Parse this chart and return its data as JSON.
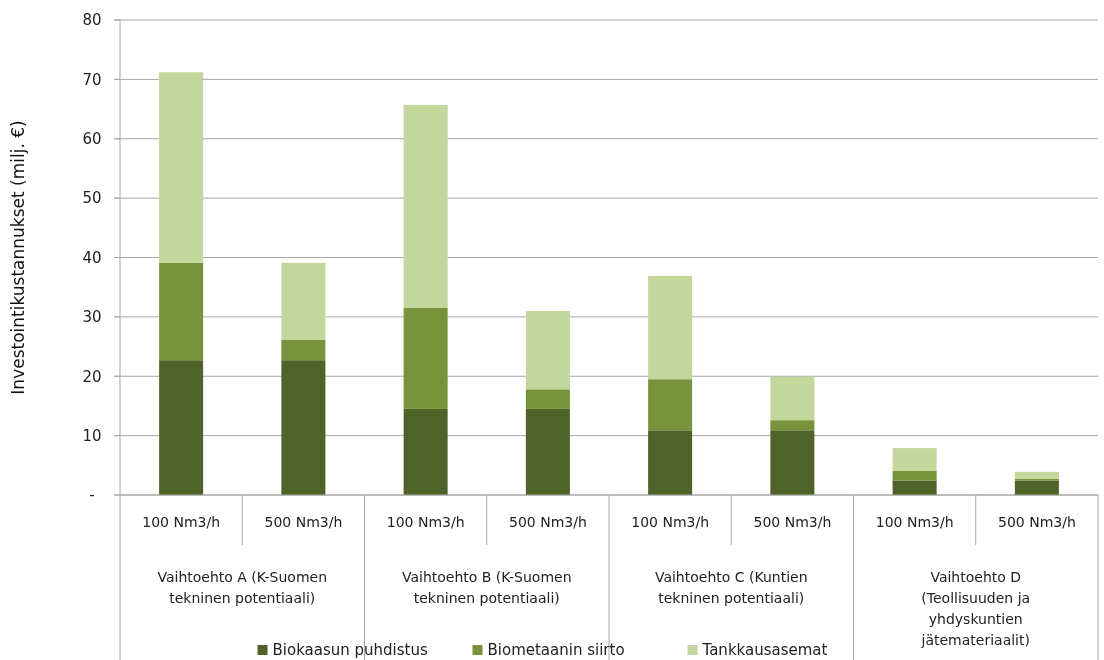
{
  "chart_data": {
    "type": "bar",
    "stacked": true,
    "ylabel": "Investointikustannukset (milj. €)",
    "categories": [
      "100 Nm3/h",
      "500 Nm3/h",
      "100 Nm3/h",
      "500 Nm3/h",
      "100 Nm3/h",
      "500 Nm3/h",
      "100 Nm3/h",
      "500 Nm3/h"
    ],
    "series": [
      {
        "name": "Biokaasun puhdistus",
        "color": "#4f6228",
        "values": [
          22.7,
          22.7,
          14.5,
          14.5,
          10.9,
          10.9,
          2.4,
          2.4
        ]
      },
      {
        "name": "Biometaanin siirto",
        "color": "#77933c",
        "values": [
          16.4,
          3.4,
          17.0,
          3.3,
          8.6,
          1.7,
          1.7,
          0.3
        ]
      },
      {
        "name": "Tankkausasemat",
        "color": "#c3d69b",
        "values": [
          32.1,
          13.0,
          34.2,
          13.2,
          17.4,
          7.3,
          3.8,
          1.2
        ]
      }
    ],
    "ylim": [
      0,
      80
    ],
    "yticks": [
      {
        "value": 0,
        "label": "-"
      },
      10,
      20,
      30,
      40,
      50,
      60,
      70,
      80
    ],
    "grid": "y",
    "legend": "bottom",
    "annotations": [
      "Vaihtoehto A (K-Suomen\ntekninen potentiaali)",
      "Vaihtoehto B (K-Suomen\ntekninen potentiaali)",
      "Vaihtoehto C (Kuntien\ntekninen potentiaali)",
      "Vaihtoehto D\n(Teollisuuden ja\nyhdyskuntien\njätemateriaalit)"
    ]
  }
}
